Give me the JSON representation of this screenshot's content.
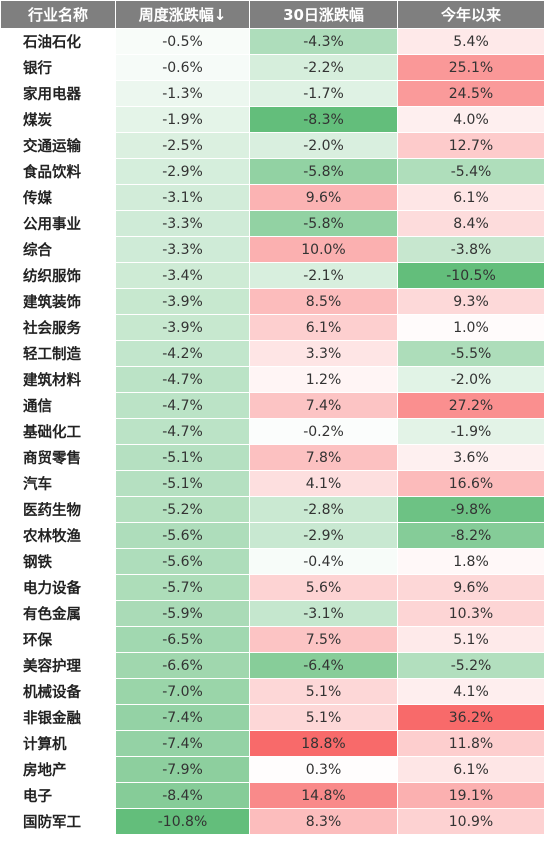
{
  "headers": {
    "name": "行业名称",
    "week": "周度涨跌幅↓",
    "d30": "30日涨跌幅",
    "ytd": "今年以来"
  },
  "colors": {
    "header_bg": "#7f7f7f",
    "positive": "#f86a6a",
    "negative": "#63be7b",
    "neutral": "#ffffff"
  },
  "rows": [
    {
      "name": "石油石化",
      "week": "-0.5%",
      "d30": "-4.3%",
      "ytd": "5.4%"
    },
    {
      "name": "银行",
      "week": "-0.6%",
      "d30": "-2.2%",
      "ytd": "25.1%"
    },
    {
      "name": "家用电器",
      "week": "-1.3%",
      "d30": "-1.7%",
      "ytd": "24.5%"
    },
    {
      "name": "煤炭",
      "week": "-1.9%",
      "d30": "-8.3%",
      "ytd": "4.0%"
    },
    {
      "name": "交通运输",
      "week": "-2.5%",
      "d30": "-2.0%",
      "ytd": "12.7%"
    },
    {
      "name": "食品饮料",
      "week": "-2.9%",
      "d30": "-5.8%",
      "ytd": "-5.4%"
    },
    {
      "name": "传媒",
      "week": "-3.1%",
      "d30": "9.6%",
      "ytd": "6.1%"
    },
    {
      "name": "公用事业",
      "week": "-3.3%",
      "d30": "-5.8%",
      "ytd": "8.4%"
    },
    {
      "name": "综合",
      "week": "-3.3%",
      "d30": "10.0%",
      "ytd": "-3.8%"
    },
    {
      "name": "纺织服饰",
      "week": "-3.4%",
      "d30": "-2.1%",
      "ytd": "-10.5%"
    },
    {
      "name": "建筑装饰",
      "week": "-3.9%",
      "d30": "8.5%",
      "ytd": "9.3%"
    },
    {
      "name": "社会服务",
      "week": "-3.9%",
      "d30": "6.1%",
      "ytd": "1.0%"
    },
    {
      "name": "轻工制造",
      "week": "-4.2%",
      "d30": "3.3%",
      "ytd": "-5.5%"
    },
    {
      "name": "建筑材料",
      "week": "-4.7%",
      "d30": "1.2%",
      "ytd": "-2.0%"
    },
    {
      "name": "通信",
      "week": "-4.7%",
      "d30": "7.4%",
      "ytd": "27.2%"
    },
    {
      "name": "基础化工",
      "week": "-4.7%",
      "d30": "-0.2%",
      "ytd": "-1.9%"
    },
    {
      "name": "商贸零售",
      "week": "-5.1%",
      "d30": "7.8%",
      "ytd": "3.6%"
    },
    {
      "name": "汽车",
      "week": "-5.1%",
      "d30": "4.1%",
      "ytd": "16.6%"
    },
    {
      "name": "医药生物",
      "week": "-5.2%",
      "d30": "-2.8%",
      "ytd": "-9.8%"
    },
    {
      "name": "农林牧渔",
      "week": "-5.6%",
      "d30": "-2.9%",
      "ytd": "-8.2%"
    },
    {
      "name": "钢铁",
      "week": "-5.6%",
      "d30": "-0.4%",
      "ytd": "1.8%"
    },
    {
      "name": "电力设备",
      "week": "-5.7%",
      "d30": "5.6%",
      "ytd": "9.6%"
    },
    {
      "name": "有色金属",
      "week": "-5.9%",
      "d30": "-3.1%",
      "ytd": "10.3%"
    },
    {
      "name": "环保",
      "week": "-6.5%",
      "d30": "7.5%",
      "ytd": "5.1%"
    },
    {
      "name": "美容护理",
      "week": "-6.6%",
      "d30": "-6.4%",
      "ytd": "-5.2%"
    },
    {
      "name": "机械设备",
      "week": "-7.0%",
      "d30": "5.1%",
      "ytd": "4.1%"
    },
    {
      "name": "非银金融",
      "week": "-7.4%",
      "d30": "5.1%",
      "ytd": "36.2%"
    },
    {
      "name": "计算机",
      "week": "-7.4%",
      "d30": "18.8%",
      "ytd": "11.8%"
    },
    {
      "name": "房地产",
      "week": "-7.9%",
      "d30": "0.3%",
      "ytd": "6.1%"
    },
    {
      "name": "电子",
      "week": "-8.4%",
      "d30": "14.8%",
      "ytd": "19.1%"
    },
    {
      "name": "国防军工",
      "week": "-10.8%",
      "d30": "8.3%",
      "ytd": "10.9%"
    }
  ]
}
